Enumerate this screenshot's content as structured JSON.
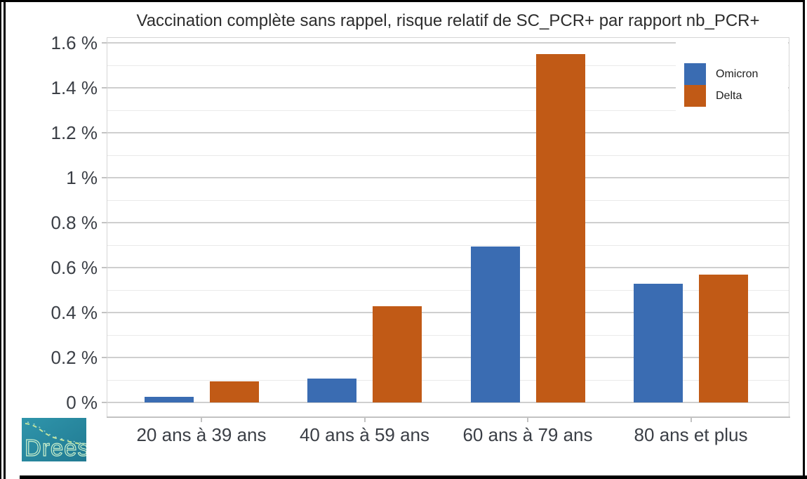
{
  "chart_data": {
    "type": "bar",
    "title": "Vaccination complète sans rappel, risque relatif de SC_PCR+ par rapport nb_PCR+",
    "categories": [
      "20 ans à 39 ans",
      "40 ans à 59 ans",
      "60 ans à 79 ans",
      "80 ans et plus"
    ],
    "series": [
      {
        "name": "Omicron",
        "color": "#3a6cb2",
        "values": [
          0.025,
          0.105,
          0.695,
          0.53
        ]
      },
      {
        "name": "Delta",
        "color": "#c15a16",
        "values": [
          0.095,
          0.43,
          1.55,
          0.57
        ]
      }
    ],
    "unit": "%",
    "ylim": [
      0,
      1.63
    ],
    "yticks": {
      "values": [
        0,
        0.2,
        0.4,
        0.6,
        0.8,
        1,
        1.2,
        1.4,
        1.6
      ],
      "labels": [
        "0 %",
        "0.2 %",
        "0.4 %",
        "0.6 %",
        "0.8 %",
        "1 %",
        "1.2 %",
        "1.4 %",
        "1.6 %"
      ]
    },
    "minor_grid_step": 0.1,
    "grid": true,
    "legend_position": "top-right"
  },
  "logo": {
    "text": "Drees",
    "bg_color": "#2b8aa0",
    "accent_color": "#d3ee9d",
    "text_color": "#c9efcc"
  },
  "colors": {
    "grid_major": "#cfcfcf",
    "grid_minor": "#eaeaea",
    "panel_border": "#d5d5d5",
    "axis_line": "#c2c2c2",
    "axis_text": "#3b3f46",
    "title_text": "#2d2d2d"
  }
}
